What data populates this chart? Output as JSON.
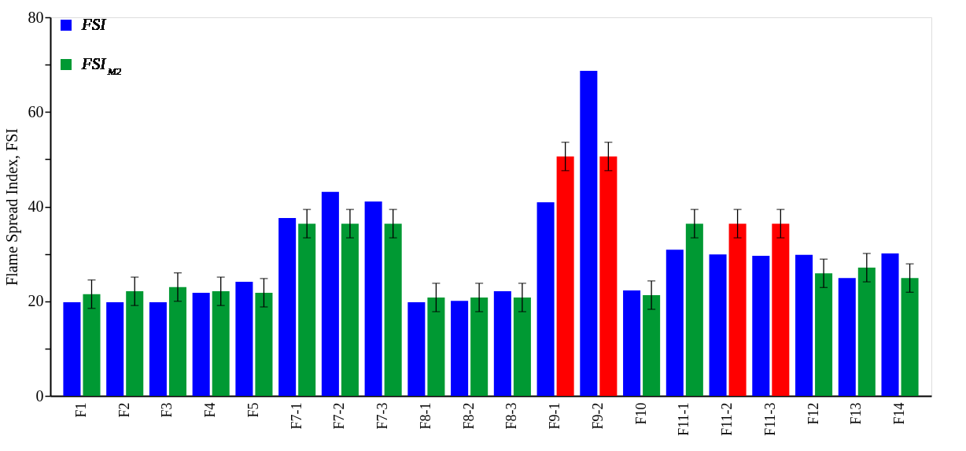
{
  "chart_data": {
    "type": "bar",
    "ylabel": "Flame Spread Index, FSI",
    "categories": [
      "F1",
      "F2",
      "F3",
      "F4",
      "F5",
      "F7-1",
      "F7-2",
      "F7-3",
      "F8-1",
      "F8-2",
      "F8-3",
      "F9-1",
      "F9-2",
      "F10",
      "F11-1",
      "F11-2",
      "F11-3",
      "F12",
      "F13",
      "F14"
    ],
    "series": [
      {
        "name": "FSI",
        "color": "#0000ff",
        "values": [
          19.8,
          19.8,
          19.8,
          21.8,
          24.1,
          37.6,
          43.1,
          41.1,
          19.8,
          20.1,
          22.1,
          40.9,
          68.7,
          22.3,
          30.9,
          29.9,
          29.6,
          29.8,
          24.9,
          30.1
        ]
      },
      {
        "name": "FSI$_{M2}$",
        "color": "#009933",
        "colors": [
          "#009933",
          "#009933",
          "#009933",
          "#009933",
          "#009933",
          "#009933",
          "#009933",
          "#009933",
          "#009933",
          "#009933",
          "#009933",
          "#ff0000",
          "#ff0000",
          "#009933",
          "#009933",
          "#ff0000",
          "#ff0000",
          "#009933",
          "#009933",
          "#009933"
        ],
        "values": [
          21.5,
          22.1,
          23.0,
          22.1,
          21.8,
          36.4,
          36.4,
          36.4,
          20.8,
          20.8,
          20.8,
          50.6,
          50.6,
          21.3,
          36.4,
          36.4,
          36.4,
          25.9,
          27.1,
          24.9
        ],
        "errors": [
          3,
          3,
          3,
          3,
          3,
          3,
          3,
          3,
          3,
          3,
          3,
          3,
          3,
          3,
          3,
          3,
          3,
          3,
          3,
          3
        ]
      }
    ],
    "ylim": [
      0,
      80
    ],
    "yticks": [
      0,
      {
        "value": 10,
        "label": null
      },
      20,
      {
        "value": 30,
        "label": null
      },
      40,
      {
        "value": 50,
        "label": null
      },
      60,
      {
        "value": 70,
        "label": null
      },
      80
    ],
    "grid": false,
    "legend": "top left"
  }
}
